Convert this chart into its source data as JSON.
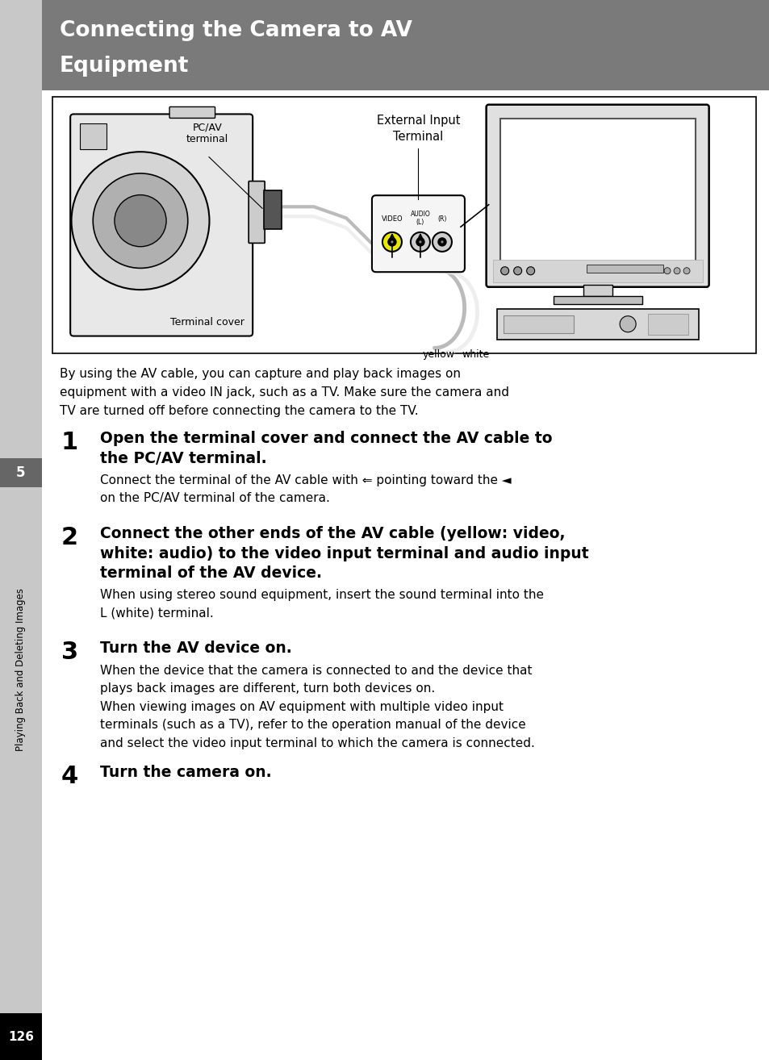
{
  "title_line1": "Connecting the Camera to AV",
  "title_line2": "Equipment",
  "title_bg_color": "#7a7a7a",
  "title_text_color": "#ffffff",
  "page_bg_color": "#ffffff",
  "left_bar_color": "#c8c8c8",
  "page_number": "126",
  "page_number_bg": "#000000",
  "page_number_color": "#ffffff",
  "sidebar_text": "Playing Back and Deleting Images",
  "sidebar_number": "5",
  "sidebar_number_bg": "#666666",
  "intro_text": "By using the AV cable, you can capture and play back images on\nequipment with a video IN jack, such as a TV. Make sure the camera and\nTV are turned off before connecting the camera to the TV.",
  "steps": [
    {
      "number": "1",
      "heading": "Open the terminal cover and connect the AV cable to\nthe PC/AV terminal.",
      "body": "Connect the terminal of the AV cable with ⇐ pointing toward the ◄\non the PC/AV terminal of the camera."
    },
    {
      "number": "2",
      "heading": "Connect the other ends of the AV cable (yellow: video,\nwhite: audio) to the video input terminal and audio input\nterminal of the AV device.",
      "body": "When using stereo sound equipment, insert the sound terminal into the\nL (white) terminal."
    },
    {
      "number": "3",
      "heading": "Turn the AV device on.",
      "body": "When the device that the camera is connected to and the device that\nplays back images are different, turn both devices on.\nWhen viewing images on AV equipment with multiple video input\nterminals (such as a TV), refer to the operation manual of the device\nand select the video input terminal to which the camera is connected."
    },
    {
      "number": "4",
      "heading": "Turn the camera on.",
      "body": ""
    }
  ]
}
